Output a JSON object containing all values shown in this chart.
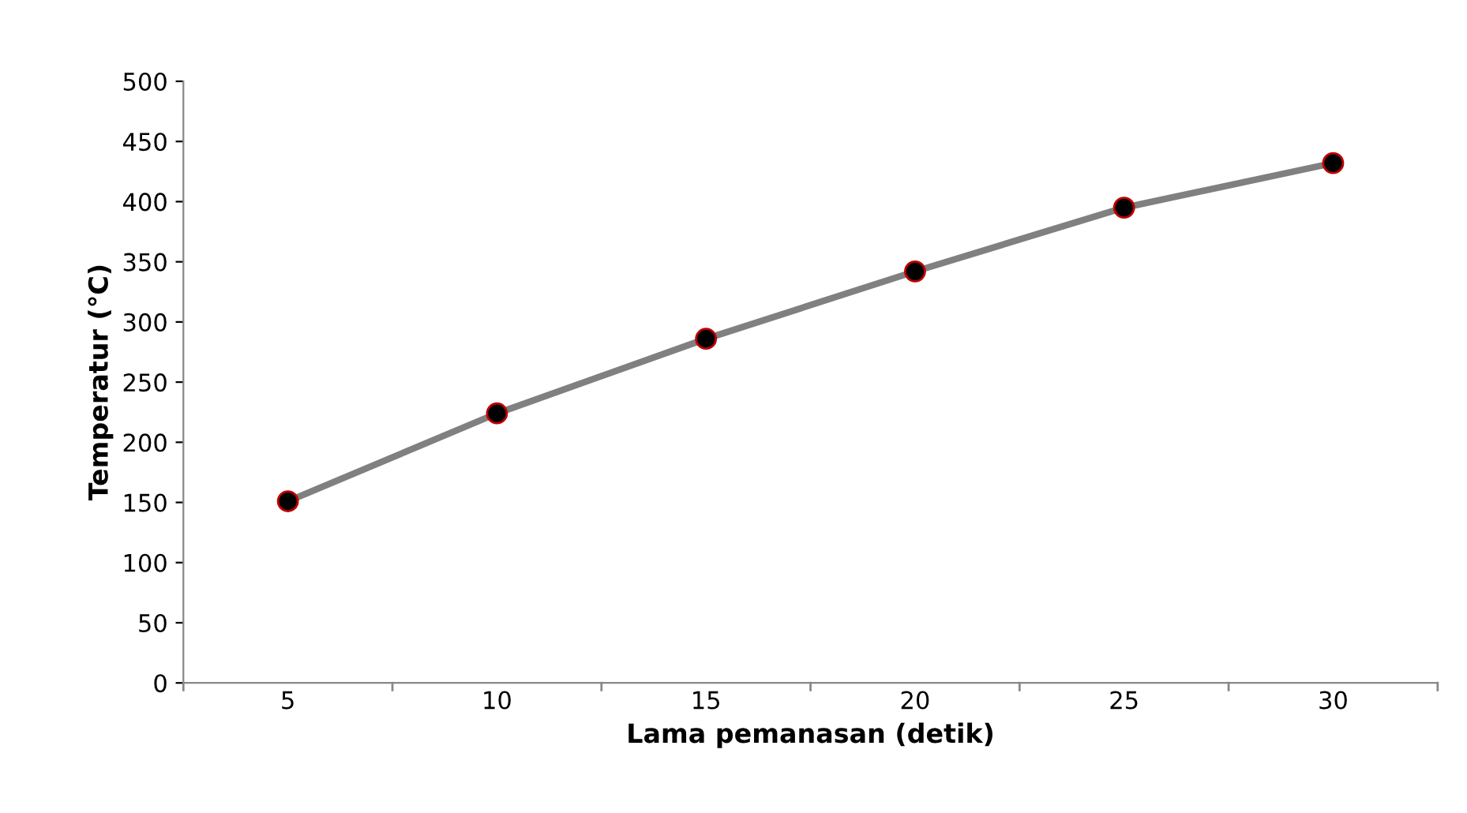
{
  "chart_data": {
    "type": "line",
    "xlabel": "Lama pemanasan (detik)",
    "ylabel": "Temperatur (°C)",
    "categories": [
      "5",
      "10",
      "15",
      "20",
      "25",
      "30"
    ],
    "series": [
      {
        "color": "#808080",
        "values": [
          151,
          224,
          286,
          342,
          395,
          432
        ]
      }
    ],
    "ylim": [
      0,
      500
    ],
    "yticks": [
      0,
      50,
      100,
      150,
      200,
      250,
      300,
      350,
      400,
      450,
      500
    ],
    "marker": "circle",
    "line_style": "solid",
    "grid": false,
    "legend": false
  }
}
